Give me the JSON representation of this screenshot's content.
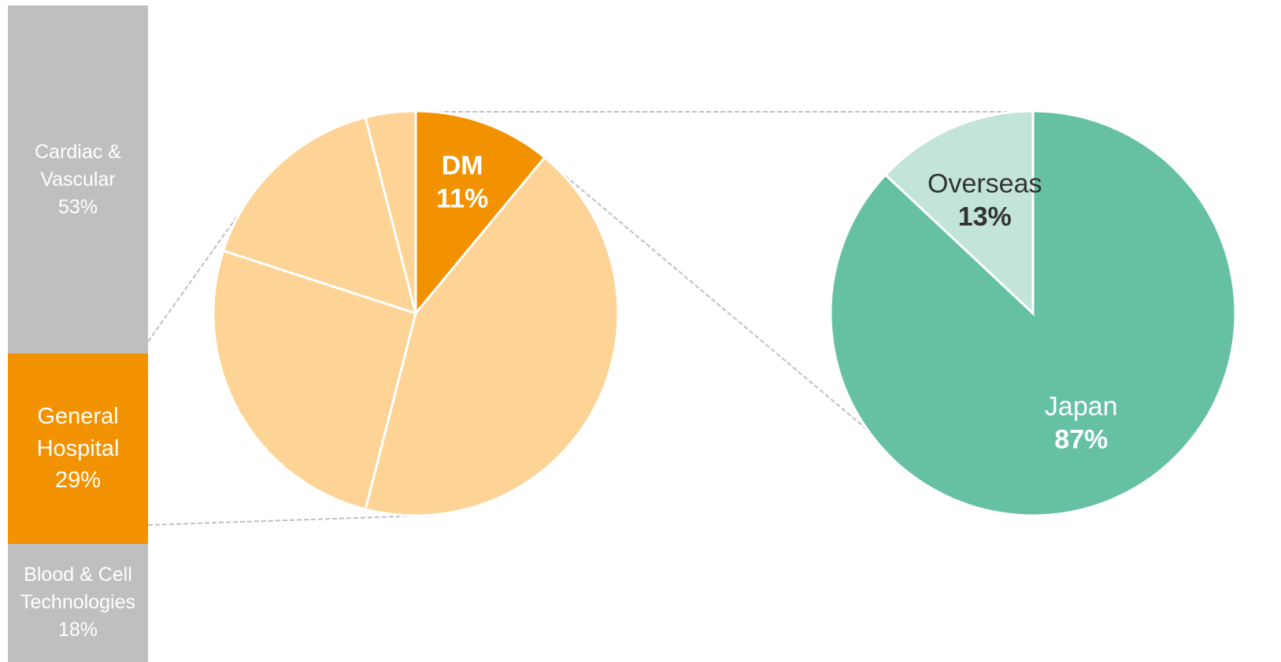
{
  "chart_data": [
    {
      "type": "stacked_bar",
      "series": [
        {
          "name": "Cardiac & Vascular",
          "color": "#BFBFBF",
          "values": [
            53
          ],
          "value_labels": [
            "53%"
          ]
        },
        {
          "name": "General Hospital",
          "color": "#F39200",
          "values": [
            29
          ],
          "value_labels": [
            "29%"
          ]
        },
        {
          "name": "Blood & Cell Technologies",
          "color": "#BFBFBF",
          "values": [
            18
          ],
          "value_labels": [
            "18%"
          ]
        }
      ]
    },
    {
      "type": "pie",
      "categories": [
        "DM",
        null,
        null,
        null,
        null
      ],
      "values": [
        11,
        43,
        26,
        16,
        4
      ],
      "value_labels": [
        "11%",
        null,
        null,
        null,
        null
      ],
      "colors": [
        "#F39200",
        "#FDD396",
        "#FDD396",
        "#FDD396",
        "#FDD396"
      ]
    },
    {
      "type": "pie",
      "categories": [
        "Japan",
        "Overseas"
      ],
      "values": [
        87,
        13
      ],
      "value_labels": [
        "87%",
        "13%"
      ],
      "colors": [
        "#66C1A4",
        "#C2E4D9"
      ]
    }
  ]
}
